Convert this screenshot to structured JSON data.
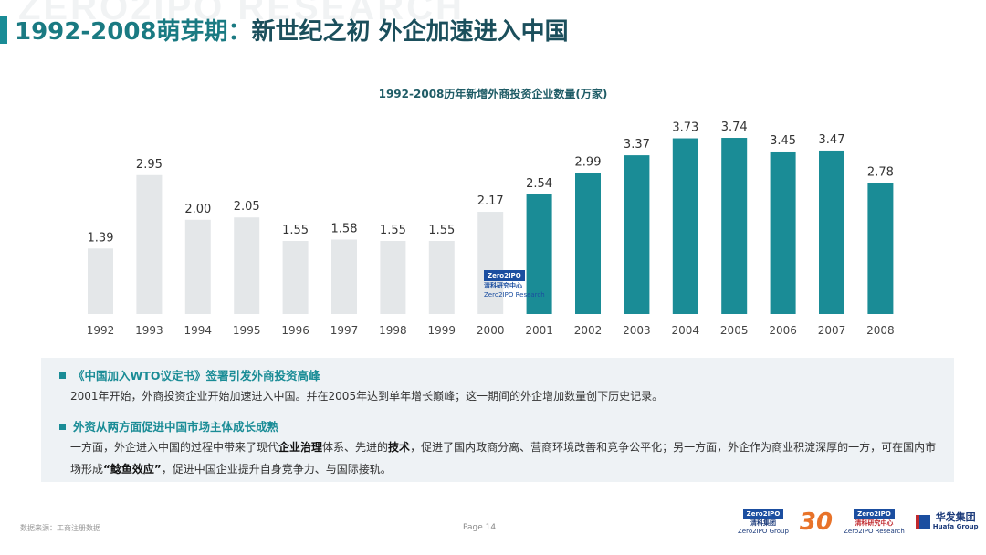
{
  "watermark": "ZERO2IPO RESEARCH",
  "header": {
    "title_part1": "1992-2008萌芽期：",
    "title_part2": "新世纪之初 外企加速进入中国"
  },
  "chart_data": {
    "type": "bar",
    "title_prefix": "1992-2008历年新增",
    "title_underlined": "外商投资企业数量",
    "title_suffix": "(万家)",
    "categories": [
      "1992",
      "1993",
      "1994",
      "1995",
      "1996",
      "1997",
      "1998",
      "1999",
      "2000",
      "2001",
      "2002",
      "2003",
      "2004",
      "2005",
      "2006",
      "2007",
      "2008"
    ],
    "values": [
      1.39,
      2.95,
      2.0,
      2.05,
      1.55,
      1.58,
      1.55,
      1.55,
      2.17,
      2.54,
      2.99,
      3.37,
      3.73,
      3.74,
      3.45,
      3.47,
      2.78
    ],
    "labels": [
      "1.39",
      "2.95",
      "2.00",
      "2.05",
      "1.55",
      "1.58",
      "1.55",
      "1.55",
      "2.17",
      "2.54",
      "2.99",
      "3.37",
      "3.73",
      "3.74",
      "3.45",
      "3.47",
      "2.78"
    ],
    "highlight_from": "2001",
    "colors": {
      "base": "#e4e7e9",
      "highlight": "#1a8c96"
    },
    "ylim": [
      0,
      4
    ]
  },
  "chart_logo": {
    "brand": "Zero2IPO",
    "name": "清科研究中心",
    "sub": "Zero2IPO Research"
  },
  "notes": {
    "h1": "《中国加入WTO议定书》签署引发外商投资高峰",
    "p1": "2001年开始，外商投资企业开始加速进入中国。并在2005年达到单年增长巅峰；这一期间的外企增加数量创下历史记录。",
    "h2": "外资从两方面促进中国市场主体成长成熟",
    "p2a": "一方面，外企进入中国的过程中带来了现代",
    "p2b": "企业治理",
    "p2c": "体系、先进的",
    "p2d": "技术",
    "p2e": "，促进了国内政商分离、营商环境改善和竞争公平化；另一方面，外企作为商业积淀深厚的一方，可在国内市场形成",
    "p2f": "“鲶鱼效应”",
    "p2g": "，促进中国企业提升自身竞争力、与国际接轨。"
  },
  "footer": {
    "source": "数据来源：工商注册数据",
    "page": "Page  14",
    "logo1_brand": "Zero2IPO",
    "logo1_name": "清科集团",
    "logo1_sub": "Zero2IPO Group",
    "logo3_brand": "Zero2IPO",
    "logo3_name": "清科研究中心",
    "logo3_sub": "Zero2IPO Research",
    "logo4_name": "华发集团",
    "logo4_sub": "Huafa Group"
  }
}
